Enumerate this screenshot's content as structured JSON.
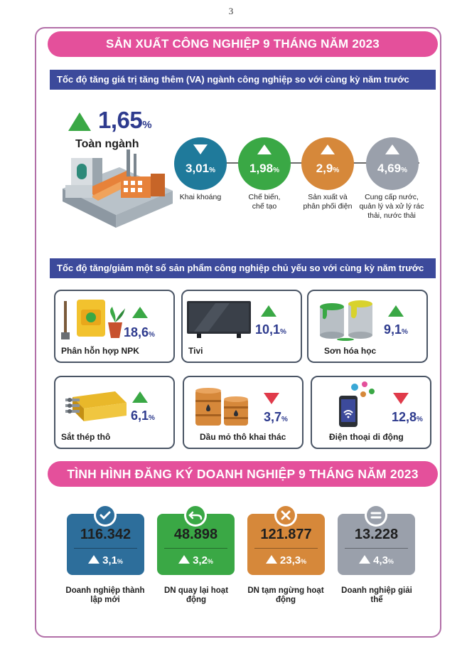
{
  "page_number": "3",
  "section1": {
    "title": "SẢN XUẤT CÔNG NGHIỆP 9 THÁNG NĂM 2023",
    "va_heading": "Tốc độ tăng giá trị tăng thêm (VA) ngành công nghiệp so với cùng kỳ năm trước",
    "total": {
      "value": "1,65",
      "unit": "%",
      "label": "Toàn ngành",
      "direction": "up"
    },
    "sectors": [
      {
        "value": "3,01",
        "unit": "%",
        "label": "Khai khoáng",
        "direction": "down",
        "color": "#1f7a9b"
      },
      {
        "value": "1,98",
        "unit": "%",
        "label": "Chế biến, chế tạo",
        "direction": "up",
        "color": "#3aa845"
      },
      {
        "value": "2,9",
        "unit": "%",
        "label": "Sản xuất và phân phối điện",
        "direction": "up",
        "color": "#d6883a"
      },
      {
        "value": "4,69",
        "unit": "%",
        "label": "Cung cấp nước, quản lý và xử lý rác thải, nước thải",
        "direction": "up",
        "color": "#9aa0ab"
      }
    ],
    "products_heading": "Tốc độ tăng/giảm một số sản phẩm công nghiệp chủ yếu so với cùng kỳ năm trước",
    "products": [
      {
        "name": "Phân hỗn hợp NPK",
        "value": "18,6",
        "unit": "%",
        "direction": "up"
      },
      {
        "name": "Tivi",
        "value": "10,1",
        "unit": "%",
        "direction": "up"
      },
      {
        "name": "Sơn hóa học",
        "value": "9,1",
        "unit": "%",
        "direction": "up"
      },
      {
        "name": "Sắt thép thô",
        "value": "6,1",
        "unit": "%",
        "direction": "up"
      },
      {
        "name": "Dầu mỏ thô khai thác",
        "value": "3,7",
        "unit": "%",
        "direction": "down"
      },
      {
        "name": "Điện thoại di động",
        "value": "12,8",
        "unit": "%",
        "direction": "down"
      }
    ]
  },
  "section2": {
    "title": "TÌNH HÌNH ĐĂNG KÝ DOANH NGHIỆP 9 THÁNG NĂM 2023",
    "items": [
      {
        "number": "116.342",
        "change": "3,1",
        "unit": "%",
        "label": "Doanh nghiệp thành lập mới",
        "color": "#2d6e9b",
        "icon": "check-icon"
      },
      {
        "number": "48.898",
        "change": "3,2",
        "unit": "%",
        "label": "DN quay lại hoạt động",
        "color": "#3aa845",
        "icon": "return-arrow-icon"
      },
      {
        "number": "121.877",
        "change": "23,3",
        "unit": "%",
        "label": "DN tạm ngừng hoạt động",
        "color": "#d6883a",
        "icon": "x-icon"
      },
      {
        "number": "13.228",
        "change": "4,3",
        "unit": "%",
        "label": "Doanh nghiệp giải thể",
        "color": "#9aa0ab",
        "icon": "equals-icon"
      }
    ]
  }
}
